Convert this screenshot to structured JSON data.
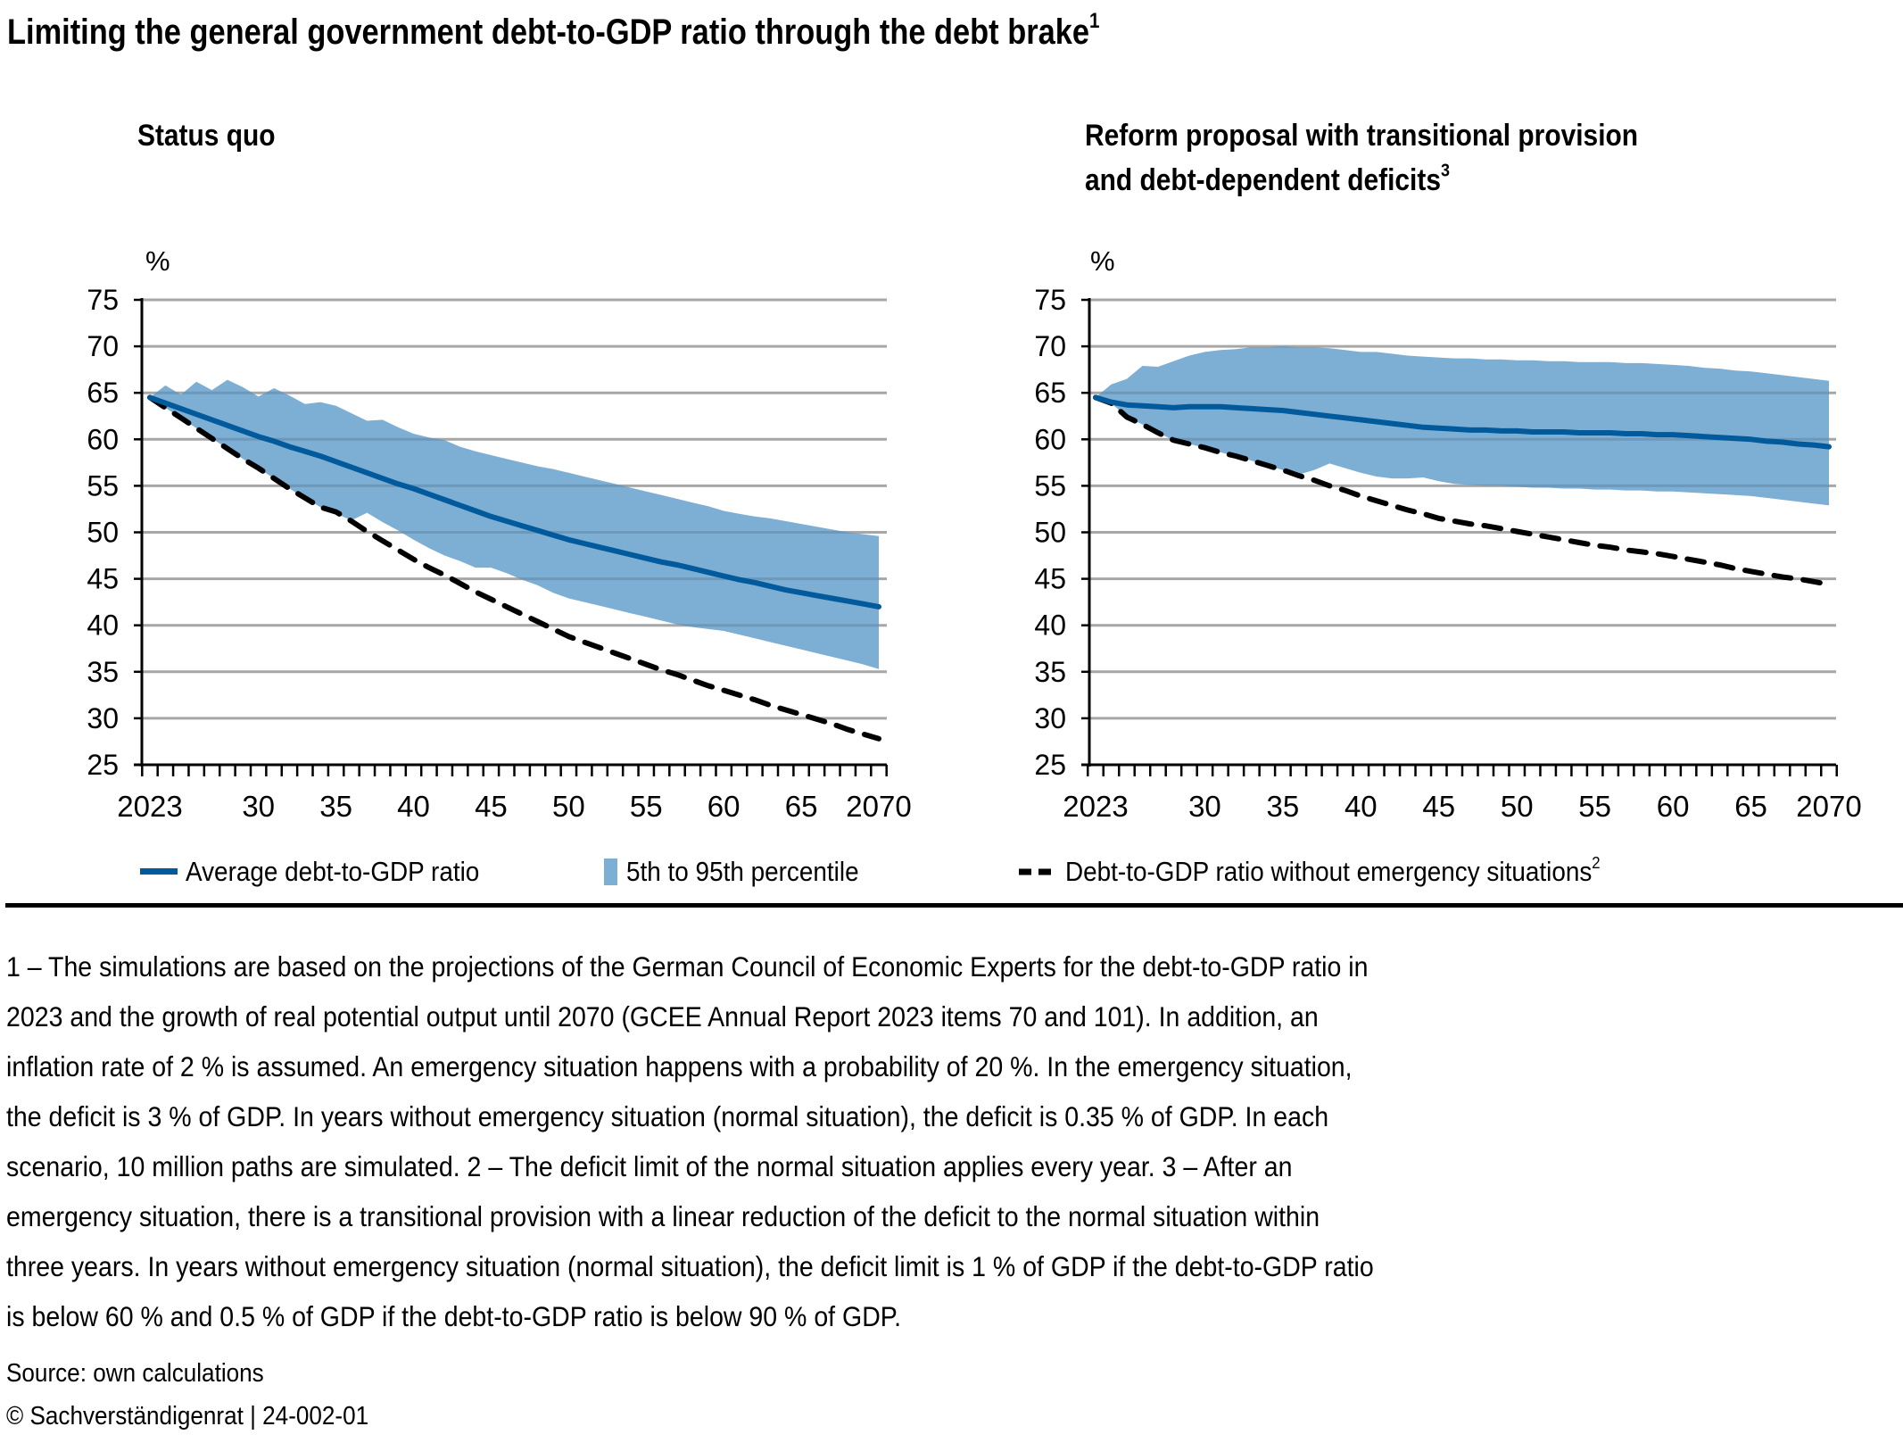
{
  "title": "Limiting the general government debt-to-GDP ratio through the debt brake",
  "title_sup": "1",
  "colors": {
    "band": "#7daed3",
    "average_line": "#005a9c",
    "dashed_line": "#000000",
    "grid": "#bfbfbf",
    "axis": "#000000"
  },
  "legend": {
    "average_label": "Average debt-to-GDP ratio",
    "band_label": "5th to 95th percentile",
    "dashed_label": "Debt-to-GDP ratio without emergency situations",
    "dashed_sup": "2"
  },
  "chart_data": [
    {
      "type": "area",
      "title": "Status quo",
      "title_sup": "",
      "ylabel": "%",
      "xlabel": "",
      "ylim": [
        25,
        75
      ],
      "yticks": [
        25,
        30,
        35,
        40,
        45,
        50,
        55,
        60,
        65,
        70,
        75
      ],
      "grid": true,
      "xlim": [
        2023,
        2070
      ],
      "xtick_labels": [
        {
          "year": 2023,
          "label": "2023"
        },
        {
          "year": 2030,
          "label": "30"
        },
        {
          "year": 2035,
          "label": "35"
        },
        {
          "year": 2040,
          "label": "40"
        },
        {
          "year": 2045,
          "label": "45"
        },
        {
          "year": 2050,
          "label": "50"
        },
        {
          "year": 2055,
          "label": "55"
        },
        {
          "year": 2060,
          "label": "60"
        },
        {
          "year": 2065,
          "label": "65"
        },
        {
          "year": 2070,
          "label": "2070"
        }
      ],
      "legend_position": "bottom",
      "years": [
        2023,
        2024,
        2025,
        2026,
        2027,
        2028,
        2029,
        2030,
        2031,
        2032,
        2033,
        2034,
        2035,
        2036,
        2037,
        2038,
        2039,
        2040,
        2041,
        2042,
        2043,
        2044,
        2045,
        2046,
        2047,
        2048,
        2049,
        2050,
        2051,
        2052,
        2053,
        2054,
        2055,
        2056,
        2057,
        2058,
        2059,
        2060,
        2061,
        2062,
        2063,
        2064,
        2065,
        2066,
        2067,
        2068,
        2069,
        2070
      ],
      "series": [
        {
          "name": "5th to 95th percentile (upper)",
          "role": "band_upper",
          "values": [
            64.5,
            65.8,
            64.8,
            66.2,
            65.3,
            66.4,
            65.6,
            64.6,
            65.5,
            64.7,
            63.8,
            64.0,
            63.6,
            62.8,
            62.0,
            62.1,
            61.3,
            60.6,
            60.2,
            59.9,
            59.2,
            58.7,
            58.3,
            57.9,
            57.5,
            57.1,
            56.8,
            56.4,
            56.0,
            55.6,
            55.2,
            54.8,
            54.4,
            54.0,
            53.6,
            53.2,
            52.8,
            52.3,
            52.0,
            51.7,
            51.5,
            51.2,
            50.9,
            50.6,
            50.3,
            50.0,
            49.8,
            49.6
          ]
        },
        {
          "name": "5th to 95th percentile (lower)",
          "role": "band_lower",
          "values": [
            64.5,
            63.4,
            62.3,
            61.2,
            60.1,
            59.0,
            57.9,
            56.9,
            55.8,
            54.7,
            53.7,
            52.7,
            52.0,
            51.3,
            52.1,
            51.1,
            50.2,
            49.2,
            48.3,
            47.5,
            46.9,
            46.2,
            46.2,
            45.6,
            44.9,
            44.3,
            43.5,
            42.9,
            42.5,
            42.1,
            41.7,
            41.3,
            40.9,
            40.5,
            40.1,
            39.8,
            39.6,
            39.4,
            39.0,
            38.6,
            38.2,
            37.8,
            37.4,
            37.0,
            36.6,
            36.2,
            35.8,
            35.3
          ]
        },
        {
          "name": "Average debt-to-GDP ratio",
          "role": "average",
          "values": [
            64.5,
            63.9,
            63.3,
            62.7,
            62.1,
            61.5,
            60.9,
            60.3,
            59.8,
            59.2,
            58.7,
            58.2,
            57.6,
            57.0,
            56.4,
            55.8,
            55.2,
            54.7,
            54.1,
            53.5,
            52.9,
            52.3,
            51.7,
            51.2,
            50.7,
            50.2,
            49.7,
            49.2,
            48.8,
            48.4,
            48.0,
            47.6,
            47.2,
            46.8,
            46.5,
            46.1,
            45.7,
            45.3,
            44.9,
            44.6,
            44.2,
            43.8,
            43.5,
            43.2,
            42.9,
            42.6,
            42.3,
            42.0
          ]
        },
        {
          "name": "Debt-to-GDP ratio without emergency situations",
          "role": "dashed",
          "values": [
            64.5,
            63.4,
            62.3,
            61.2,
            60.1,
            59.0,
            57.9,
            56.9,
            55.8,
            54.7,
            53.7,
            52.7,
            52.2,
            51.2,
            50.1,
            49.1,
            48.1,
            47.1,
            46.2,
            45.4,
            44.5,
            43.6,
            42.8,
            42.0,
            41.2,
            40.4,
            39.6,
            38.8,
            38.2,
            37.6,
            37.0,
            36.4,
            35.8,
            35.2,
            34.7,
            34.1,
            33.5,
            33.0,
            32.5,
            32.0,
            31.4,
            30.9,
            30.4,
            29.9,
            29.4,
            28.8,
            28.3,
            27.8
          ]
        }
      ]
    },
    {
      "type": "area",
      "title": "Reform proposal with transitional provision|and debt-dependent deficits",
      "title_line1": "Reform proposal with transitional provision",
      "title_line2": "and debt-dependent deficits",
      "title_sup": "3",
      "ylabel": "%",
      "xlabel": "",
      "ylim": [
        25,
        75
      ],
      "yticks": [
        25,
        30,
        35,
        40,
        45,
        50,
        55,
        60,
        65,
        70,
        75
      ],
      "grid": true,
      "xlim": [
        2023,
        2070
      ],
      "xtick_labels": [
        {
          "year": 2023,
          "label": "2023"
        },
        {
          "year": 2030,
          "label": "30"
        },
        {
          "year": 2035,
          "label": "35"
        },
        {
          "year": 2040,
          "label": "40"
        },
        {
          "year": 2045,
          "label": "45"
        },
        {
          "year": 2050,
          "label": "50"
        },
        {
          "year": 2055,
          "label": "55"
        },
        {
          "year": 2060,
          "label": "60"
        },
        {
          "year": 2065,
          "label": "65"
        },
        {
          "year": 2070,
          "label": "2070"
        }
      ],
      "legend_position": "bottom",
      "years": [
        2023,
        2024,
        2025,
        2026,
        2027,
        2028,
        2029,
        2030,
        2031,
        2032,
        2033,
        2034,
        2035,
        2036,
        2037,
        2038,
        2039,
        2040,
        2041,
        2042,
        2043,
        2044,
        2045,
        2046,
        2047,
        2048,
        2049,
        2050,
        2051,
        2052,
        2053,
        2054,
        2055,
        2056,
        2057,
        2058,
        2059,
        2060,
        2061,
        2062,
        2063,
        2064,
        2065,
        2066,
        2067,
        2068,
        2069,
        2070
      ],
      "series": [
        {
          "name": "5th to 95th percentile (upper)",
          "role": "band_upper",
          "values": [
            64.5,
            65.9,
            66.5,
            67.9,
            67.8,
            68.4,
            69.0,
            69.4,
            69.6,
            69.7,
            69.9,
            69.9,
            70.0,
            69.9,
            69.9,
            69.8,
            69.6,
            69.4,
            69.4,
            69.2,
            69.0,
            68.9,
            68.8,
            68.7,
            68.7,
            68.6,
            68.6,
            68.5,
            68.5,
            68.4,
            68.4,
            68.3,
            68.3,
            68.3,
            68.2,
            68.2,
            68.1,
            68.0,
            67.9,
            67.7,
            67.6,
            67.4,
            67.3,
            67.1,
            66.9,
            66.7,
            66.5,
            66.3
          ]
        },
        {
          "name": "5th to 95th percentile (lower)",
          "role": "band_lower",
          "values": [
            64.5,
            63.9,
            62.4,
            61.6,
            60.7,
            59.9,
            59.5,
            59.1,
            58.6,
            58.2,
            57.7,
            57.2,
            56.7,
            56.2,
            56.7,
            57.4,
            56.9,
            56.4,
            56.0,
            55.8,
            55.8,
            55.9,
            55.5,
            55.2,
            55.1,
            55.0,
            55.0,
            54.9,
            54.8,
            54.8,
            54.7,
            54.7,
            54.6,
            54.6,
            54.5,
            54.5,
            54.4,
            54.4,
            54.3,
            54.2,
            54.1,
            54.0,
            53.9,
            53.7,
            53.5,
            53.3,
            53.1,
            52.9
          ]
        },
        {
          "name": "Average debt-to-GDP ratio",
          "role": "average",
          "values": [
            64.5,
            64.0,
            63.7,
            63.6,
            63.5,
            63.4,
            63.5,
            63.5,
            63.5,
            63.4,
            63.3,
            63.2,
            63.1,
            62.9,
            62.7,
            62.5,
            62.3,
            62.1,
            61.9,
            61.7,
            61.5,
            61.3,
            61.2,
            61.1,
            61.0,
            61.0,
            60.9,
            60.9,
            60.8,
            60.8,
            60.8,
            60.7,
            60.7,
            60.7,
            60.6,
            60.6,
            60.5,
            60.5,
            60.4,
            60.3,
            60.2,
            60.1,
            60.0,
            59.8,
            59.7,
            59.5,
            59.4,
            59.2
          ]
        },
        {
          "name": "Debt-to-GDP ratio without emergency situations",
          "role": "dashed",
          "values": [
            64.5,
            63.9,
            62.4,
            61.6,
            60.7,
            59.9,
            59.5,
            59.1,
            58.6,
            58.2,
            57.7,
            57.2,
            56.7,
            56.1,
            55.6,
            55.0,
            54.5,
            53.9,
            53.4,
            52.9,
            52.4,
            52.0,
            51.5,
            51.2,
            50.9,
            50.7,
            50.4,
            50.1,
            49.8,
            49.5,
            49.2,
            48.9,
            48.6,
            48.4,
            48.1,
            47.9,
            47.7,
            47.4,
            47.1,
            46.8,
            46.5,
            46.1,
            45.8,
            45.5,
            45.2,
            45.0,
            44.7,
            44.4
          ]
        }
      ]
    }
  ],
  "footnotes": {
    "lines": [
      "1 – The simulations are based on the projections of the German Council of Economic Experts for the debt-to-GDP ratio in",
      "2023 and the growth of real potential output until 2070 (GCEE Annual Report 2023 items 70 and 101). In addition, an",
      "inflation rate of 2 % is assumed. An emergency situation happens with a probability of 20 %. In the emergency situation,",
      "the deficit is 3 % of GDP. In years without emergency situation (normal situation), the deficit is 0.35 % of GDP. In each",
      "scenario, 10 million paths are simulated.  2 – The deficit limit of the normal situation applies every year.  3 – After an",
      "emergency situation, there is a transitional provision with a linear reduction of the deficit to the normal situation within",
      "three years. In years without emergency situation (normal situation), the deficit limit is 1 % of GDP if the debt-to-GDP ratio",
      "is below 60 % and 0.5 % of GDP if the debt-to-GDP ratio is below 90 % of GDP."
    ]
  },
  "source": "Source: own calculations",
  "copyright": "© Sachverständigenrat | 24-002-01"
}
